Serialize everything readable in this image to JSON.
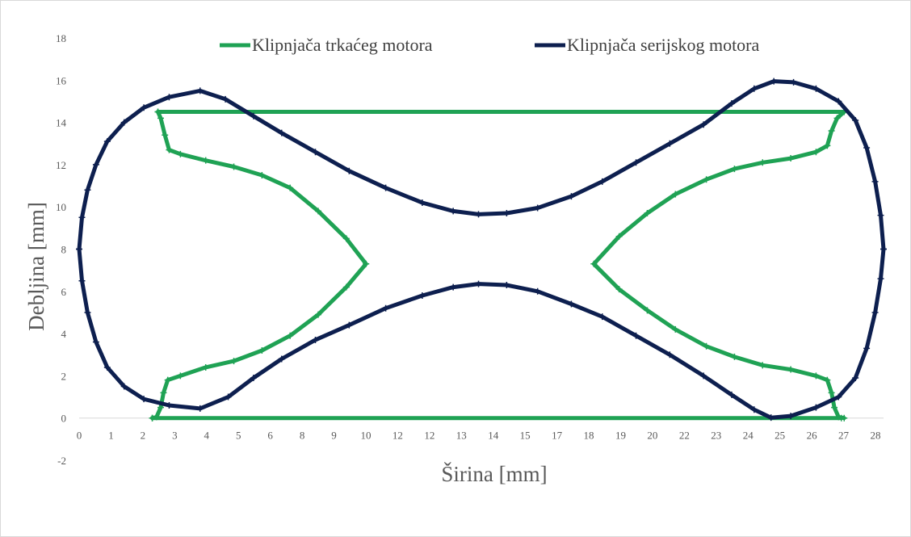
{
  "chart_data": {
    "type": "scatter",
    "title": "",
    "xlabel": "Širina [mm]",
    "ylabel": "Debljina [mm]",
    "xlim": [
      0,
      28.6
    ],
    "ylim": [
      -2,
      18
    ],
    "x_ticks": [
      "0",
      "1",
      "2",
      "3",
      "4",
      "5",
      "6",
      "8",
      "9",
      "10",
      "12",
      "12",
      "13",
      "14",
      "15",
      "17",
      "18",
      "19",
      "20",
      "22",
      "23",
      "24",
      "25",
      "26",
      "27",
      "28"
    ],
    "y_ticks": [
      "-2",
      "0",
      "2",
      "4",
      "6",
      "8",
      "10",
      "12",
      "14",
      "16",
      "18"
    ],
    "grid": false,
    "legend_position": "top",
    "colors": {
      "racing": "#1fa254",
      "serial": "#0d1f4f",
      "axis": "#d9d9d9",
      "text": "#595959"
    },
    "series": [
      {
        "name": "Klipnjača trkaćeg motora",
        "color": "#1fa254",
        "marker": "plus",
        "paths": [
          [
            [
              2.6,
              0
            ],
            [
              27.1,
              0
            ]
          ],
          [
            [
              2.8,
              14.5
            ],
            [
              27.2,
              14.5
            ]
          ],
          [
            [
              2.6,
              0
            ],
            [
              2.75,
              0.05
            ],
            [
              2.9,
              0.5
            ],
            [
              3.0,
              1.2
            ],
            [
              3.15,
              1.8
            ],
            [
              3.6,
              2.0
            ],
            [
              4.5,
              2.4
            ],
            [
              5.5,
              2.7
            ],
            [
              6.5,
              3.2
            ],
            [
              7.5,
              3.9
            ],
            [
              8.5,
              4.9
            ],
            [
              9.5,
              6.2
            ],
            [
              10.2,
              7.3
            ],
            [
              9.5,
              8.5
            ],
            [
              8.5,
              9.8
            ],
            [
              7.5,
              10.9
            ],
            [
              6.5,
              11.5
            ],
            [
              5.5,
              11.9
            ],
            [
              4.5,
              12.2
            ],
            [
              3.6,
              12.5
            ],
            [
              3.2,
              12.7
            ],
            [
              3.05,
              13.4
            ],
            [
              2.9,
              14.2
            ],
            [
              2.8,
              14.5
            ]
          ],
          [
            [
              27.2,
              0
            ],
            [
              27.0,
              0.05
            ],
            [
              26.85,
              0.5
            ],
            [
              26.75,
              1.2
            ],
            [
              26.6,
              1.8
            ],
            [
              26.2,
              2.0
            ],
            [
              25.3,
              2.3
            ],
            [
              24.3,
              2.5
            ],
            [
              23.3,
              2.9
            ],
            [
              22.3,
              3.4
            ],
            [
              21.2,
              4.2
            ],
            [
              20.2,
              5.1
            ],
            [
              19.2,
              6.1
            ],
            [
              18.3,
              7.3
            ],
            [
              19.2,
              8.6
            ],
            [
              20.2,
              9.7
            ],
            [
              21.2,
              10.6
            ],
            [
              22.3,
              11.3
            ],
            [
              23.3,
              11.8
            ],
            [
              24.3,
              12.1
            ],
            [
              25.3,
              12.3
            ],
            [
              26.2,
              12.6
            ],
            [
              26.6,
              12.9
            ],
            [
              26.75,
              13.6
            ],
            [
              26.95,
              14.2
            ],
            [
              27.2,
              14.5
            ]
          ]
        ]
      },
      {
        "name": "Klipnjača serijskog motora",
        "color": "#0d1f4f",
        "marker": "plus",
        "paths": [
          [
            [
              0,
              8
            ],
            [
              0.1,
              9.5
            ],
            [
              0.3,
              10.8
            ],
            [
              0.6,
              12.0
            ],
            [
              1.0,
              13.1
            ],
            [
              1.6,
              14.0
            ],
            [
              2.3,
              14.7
            ],
            [
              3.2,
              15.2
            ],
            [
              4.3,
              15.5
            ],
            [
              5.2,
              15.1
            ],
            [
              6.2,
              14.3
            ],
            [
              7.2,
              13.5
            ],
            [
              8.4,
              12.6
            ],
            [
              9.6,
              11.7
            ],
            [
              10.9,
              10.9
            ],
            [
              12.2,
              10.2
            ],
            [
              13.3,
              9.8
            ],
            [
              14.2,
              9.65
            ],
            [
              15.2,
              9.7
            ],
            [
              16.3,
              9.95
            ],
            [
              17.5,
              10.5
            ],
            [
              18.6,
              11.2
            ],
            [
              19.8,
              12.1
            ],
            [
              21.0,
              13.0
            ],
            [
              22.2,
              13.9
            ],
            [
              23.2,
              14.9
            ],
            [
              24.0,
              15.6
            ],
            [
              24.7,
              15.95
            ],
            [
              25.4,
              15.9
            ],
            [
              26.2,
              15.6
            ],
            [
              27.0,
              15.0
            ],
            [
              27.6,
              14.1
            ],
            [
              28.0,
              12.8
            ],
            [
              28.3,
              11.2
            ],
            [
              28.5,
              9.6
            ],
            [
              28.6,
              8
            ]
          ],
          [
            [
              0,
              8
            ],
            [
              0.1,
              6.5
            ],
            [
              0.3,
              5.0
            ],
            [
              0.6,
              3.6
            ],
            [
              1.0,
              2.4
            ],
            [
              1.6,
              1.5
            ],
            [
              2.3,
              0.9
            ],
            [
              3.2,
              0.6
            ],
            [
              4.3,
              0.45
            ],
            [
              5.3,
              1.0
            ],
            [
              6.2,
              1.9
            ],
            [
              7.2,
              2.8
            ],
            [
              8.4,
              3.7
            ],
            [
              9.6,
              4.4
            ],
            [
              10.9,
              5.2
            ],
            [
              12.2,
              5.8
            ],
            [
              13.3,
              6.2
            ],
            [
              14.2,
              6.35
            ],
            [
              15.2,
              6.3
            ],
            [
              16.3,
              6.0
            ],
            [
              17.5,
              5.4
            ],
            [
              18.6,
              4.8
            ],
            [
              19.8,
              3.9
            ],
            [
              21.0,
              3.0
            ],
            [
              22.2,
              2.0
            ],
            [
              23.2,
              1.1
            ],
            [
              24.0,
              0.4
            ],
            [
              24.6,
              0.02
            ],
            [
              25.3,
              0.1
            ],
            [
              26.2,
              0.5
            ],
            [
              27.0,
              1.0
            ],
            [
              27.6,
              1.9
            ],
            [
              28.0,
              3.3
            ],
            [
              28.3,
              5.0
            ],
            [
              28.5,
              6.6
            ],
            [
              28.6,
              8
            ]
          ]
        ]
      }
    ]
  }
}
